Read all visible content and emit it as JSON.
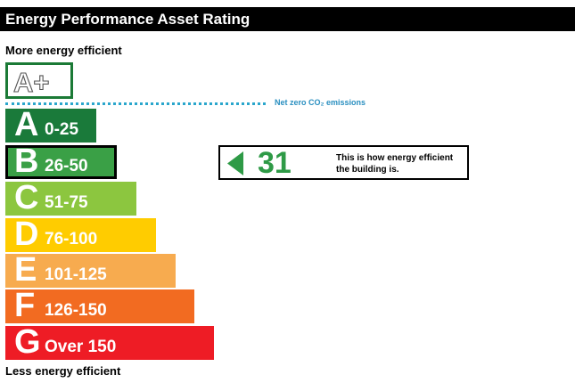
{
  "header": {
    "title": "Energy Performance Asset Rating"
  },
  "scale": {
    "top_label": "More energy efficient",
    "bottom_label": "Less energy efficient",
    "aplus": {
      "label": "A+"
    },
    "netzero": {
      "label": "Net zero CO₂ emissions"
    },
    "bands": [
      {
        "letter": "A",
        "range": "0-25",
        "color": "#1a7a3a"
      },
      {
        "letter": "B",
        "range": "26-50",
        "color": "#3aa046"
      },
      {
        "letter": "C",
        "range": "51-75",
        "color": "#8cc63f"
      },
      {
        "letter": "D",
        "range": "76-100",
        "color": "#ffcc00"
      },
      {
        "letter": "E",
        "range": "101-125",
        "color": "#f7ab4f"
      },
      {
        "letter": "F",
        "range": "126-150",
        "color": "#f26b21"
      },
      {
        "letter": "G",
        "range": "Over 150",
        "color": "#ee1c25"
      }
    ]
  },
  "rating": {
    "value": "31",
    "band": "B",
    "description": "This is how energy efficient the building is.",
    "color": "#2e9a46"
  }
}
